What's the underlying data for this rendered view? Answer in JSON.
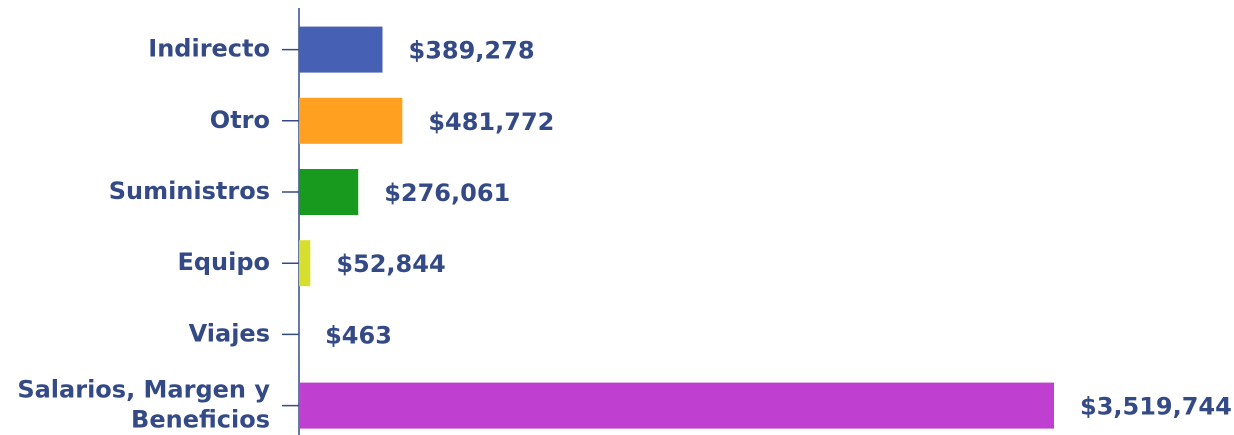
{
  "chart_data": {
    "type": "barh",
    "categories": [
      "Indirecto",
      "Otro",
      "Suministros",
      "Equipo",
      "Viajes",
      "Salarios, Margen y Beneficios"
    ],
    "values": [
      389278,
      481772,
      276061,
      52844,
      463,
      3519744
    ],
    "value_labels": [
      "$389,278",
      "$481,772",
      "$276,061",
      "$52,844",
      "$463",
      "$3,519,744"
    ],
    "colors": [
      "#4660b4",
      "#ffa020",
      "#189a1e",
      "#d6df2e",
      "#e4572e",
      "#bf40d0"
    ]
  }
}
